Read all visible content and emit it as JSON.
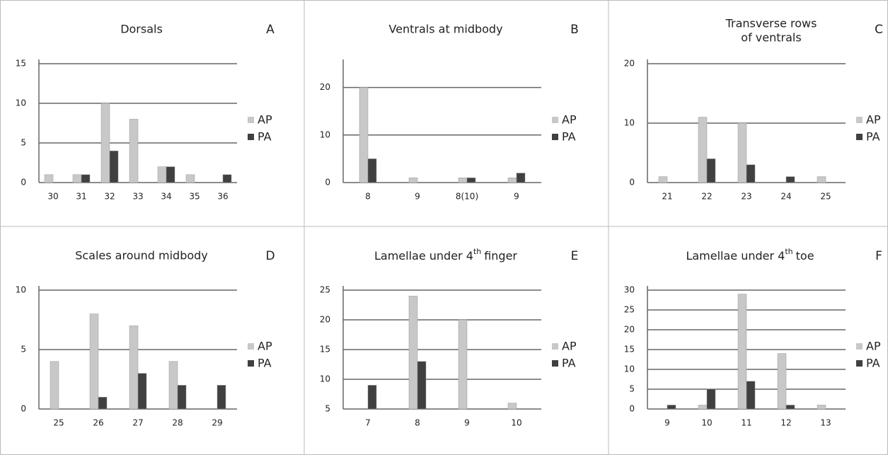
{
  "chart_data": [
    {
      "type": "bar",
      "panel": "A",
      "title": "Dorsals",
      "categories": [
        "30",
        "31",
        "32",
        "33",
        "34",
        "35",
        "36"
      ],
      "series": [
        {
          "name": "AP",
          "color": "#c8c8c8",
          "values": [
            1,
            1,
            10,
            8,
            2,
            1,
            0
          ]
        },
        {
          "name": "PA",
          "color": "#404040",
          "values": [
            0,
            1,
            4,
            0,
            2,
            0,
            1
          ]
        }
      ],
      "ylim": [
        0,
        15
      ],
      "yticks": [
        0,
        5,
        10,
        15
      ],
      "grid": true
    },
    {
      "type": "bar",
      "panel": "B",
      "title": "Ventrals at midbody",
      "categories": [
        "8",
        "9",
        "8(10)",
        "9"
      ],
      "series": [
        {
          "name": "AP",
          "color": "#c8c8c8",
          "values": [
            20,
            1,
            1,
            1
          ]
        },
        {
          "name": "PA",
          "color": "#404040",
          "values": [
            5,
            0,
            1,
            2
          ]
        }
      ],
      "ylim": [
        0,
        25
      ],
      "yticks": [
        0,
        10,
        20
      ],
      "grid": true
    },
    {
      "type": "bar",
      "panel": "C",
      "title": [
        "Transverse rows",
        "of ventrals"
      ],
      "categories": [
        "21",
        "22",
        "23",
        "24",
        "25"
      ],
      "series": [
        {
          "name": "AP",
          "color": "#c8c8c8",
          "values": [
            1,
            11,
            10,
            0,
            1
          ]
        },
        {
          "name": "PA",
          "color": "#404040",
          "values": [
            0,
            4,
            3,
            1,
            0
          ]
        }
      ],
      "ylim": [
        0,
        20
      ],
      "yticks": [
        0,
        10,
        20
      ],
      "grid": true
    },
    {
      "type": "bar",
      "panel": "D",
      "title": "Scales around midbody",
      "categories": [
        "25",
        "26",
        "27",
        "28",
        "29"
      ],
      "series": [
        {
          "name": "AP",
          "color": "#c8c8c8",
          "values": [
            4,
            8,
            7,
            4,
            0
          ]
        },
        {
          "name": "PA",
          "color": "#404040",
          "values": [
            0,
            1,
            3,
            2,
            2
          ]
        }
      ],
      "ylim": [
        0,
        10
      ],
      "yticks": [
        0,
        5,
        10
      ],
      "grid": true
    },
    {
      "type": "bar",
      "panel": "E",
      "title": "Lamellae under 4",
      "title_sup": "th",
      "title_end": "finger",
      "categories": [
        "7",
        "8",
        "9",
        "10"
      ],
      "series": [
        {
          "name": "AP",
          "color": "#c8c8c8",
          "values": [
            null,
            24,
            20,
            6
          ]
        },
        {
          "name": "PA",
          "color": "#404040",
          "values": [
            9,
            13,
            null,
            null
          ]
        }
      ],
      "ylim": [
        5,
        25
      ],
      "yticks": [
        5,
        10,
        15,
        20,
        25
      ],
      "grid": true
    },
    {
      "type": "bar",
      "panel": "F",
      "title": "Lamellae under 4",
      "title_sup": "th",
      "title_end": "toe",
      "categories": [
        "9",
        "10",
        "11",
        "12",
        "13"
      ],
      "series": [
        {
          "name": "AP",
          "color": "#c8c8c8",
          "values": [
            0,
            1,
            29,
            14,
            1
          ]
        },
        {
          "name": "PA",
          "color": "#404040",
          "values": [
            1,
            5,
            7,
            1,
            0
          ]
        }
      ],
      "ylim": [
        0,
        30
      ],
      "yticks": [
        0,
        5,
        10,
        15,
        20,
        25,
        30
      ],
      "grid": true
    }
  ]
}
